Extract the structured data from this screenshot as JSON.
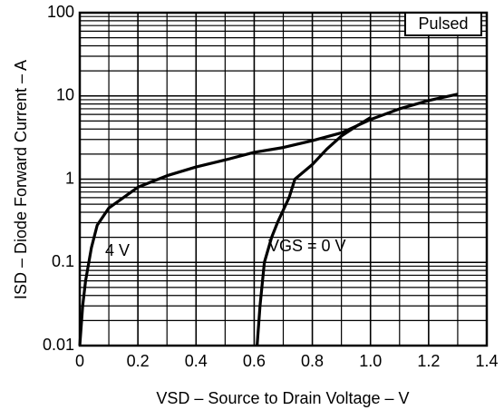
{
  "chart_data": {
    "type": "line",
    "xlabel": "VSD – Source to Drain Voltage – V",
    "ylabel": "ISD – Diode Forward Current – A",
    "annotations": [
      "4 V",
      "VGS = 0 V",
      "Pulsed"
    ],
    "log_y": true,
    "grid": true,
    "xlim": [
      0,
      1.4
    ],
    "ylim": [
      0.01,
      100
    ],
    "xticks": [
      0,
      0.2,
      0.4,
      0.6,
      0.8,
      {
        "value": 1,
        "label": "1.0"
      },
      1.2,
      1.4
    ],
    "xticks_minor": [
      0.1,
      0.3,
      0.5,
      0.7,
      0.9,
      1.1,
      1.3
    ],
    "yticks": [
      100,
      10,
      1,
      0.1,
      0.01
    ],
    "yticks_minor": [
      0.02,
      0.03,
      0.04,
      0.05,
      0.06,
      0.07,
      0.08,
      0.09,
      0.2,
      0.3,
      0.4,
      0.5,
      0.6,
      0.7,
      0.8,
      0.9,
      2,
      3,
      4,
      5,
      6,
      7,
      8,
      9,
      20,
      30,
      40,
      50,
      60,
      70,
      80,
      90
    ],
    "series": [
      {
        "color": "#000000",
        "x": [
          0,
          0.01,
          0.02,
          0.04,
          0.06,
          0.1,
          0.2,
          0.3,
          0.4,
          0.5,
          0.6,
          0.7,
          0.8,
          0.9,
          1.0,
          1.1,
          1.2,
          1.3
        ],
        "values": [
          0.01,
          0.03,
          0.06,
          0.15,
          0.28,
          0.45,
          0.8,
          1.1,
          1.4,
          1.7,
          2.1,
          2.4,
          2.9,
          3.6,
          5.2,
          7,
          8.8,
          10.5
        ]
      },
      {
        "color": "#000000",
        "x": [
          0.61,
          0.62,
          0.635,
          0.66,
          0.68,
          0.72,
          0.74,
          0.8,
          0.85,
          0.9,
          0.95,
          1.0
        ],
        "values": [
          0.01,
          0.03,
          0.1,
          0.2,
          0.3,
          0.6,
          1.0,
          1.5,
          2.3,
          3.3,
          4.3,
          5.5
        ]
      }
    ]
  }
}
